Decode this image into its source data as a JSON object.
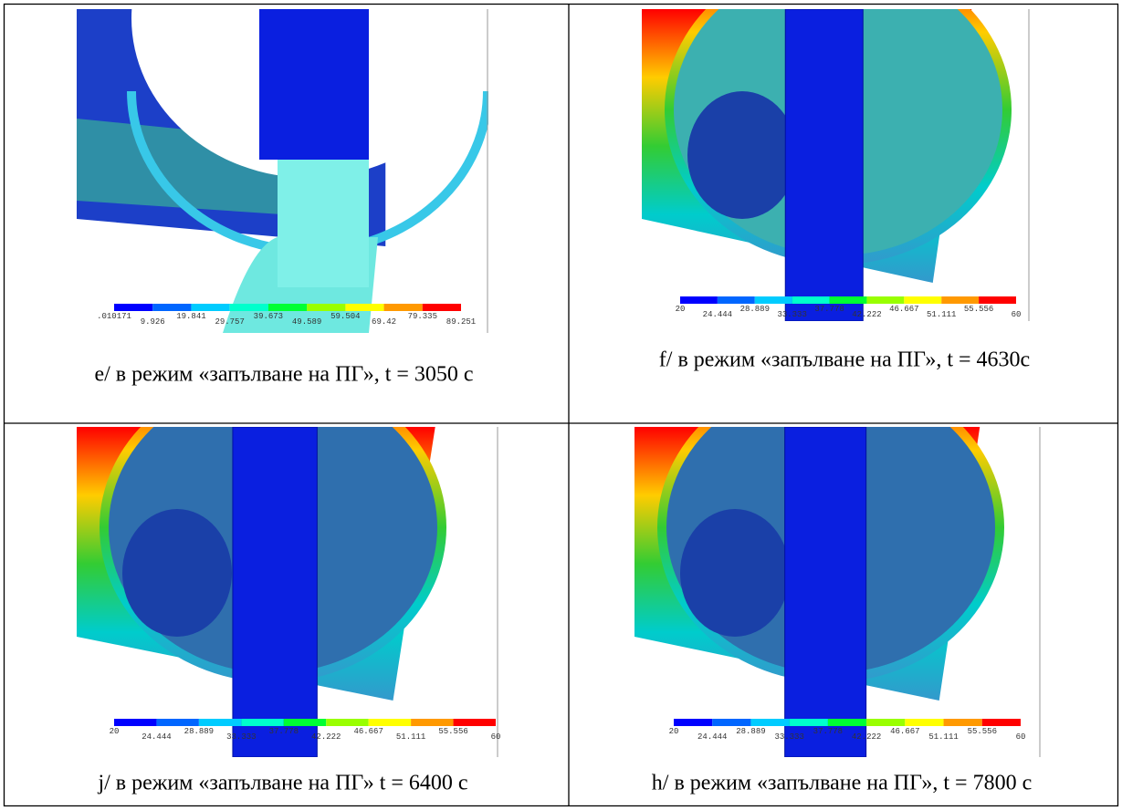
{
  "panels": [
    {
      "caption": "e/ в режим «запълване на ПГ», t = 3050 с",
      "legend": [
        ".010171",
        "9.926",
        "19.841",
        "29.757",
        "39.673",
        "49.589",
        "59.504",
        "69.42",
        "79.335",
        "89.251"
      ]
    },
    {
      "caption": "f/ в режим «запълване на ПГ», t = 4630с",
      "legend": [
        "20",
        "24.444",
        "28.889",
        "33.333",
        "37.778",
        "42.222",
        "46.667",
        "51.111",
        "55.556",
        "60"
      ]
    },
    {
      "caption": "j/ в режим «запълване на ПГ» t = 6400 с",
      "legend": [
        "20",
        "24.444",
        "28.889",
        "33.333",
        "37.778",
        "42.222",
        "46.667",
        "51.111",
        "55.556",
        "60"
      ]
    },
    {
      "caption": "h/ в режим «запълване на ПГ», t = 7800 с",
      "legend": [
        "20",
        "24.444",
        "28.889",
        "33.333",
        "37.778",
        "42.222",
        "46.667",
        "51.111",
        "55.556",
        "60"
      ]
    }
  ]
}
